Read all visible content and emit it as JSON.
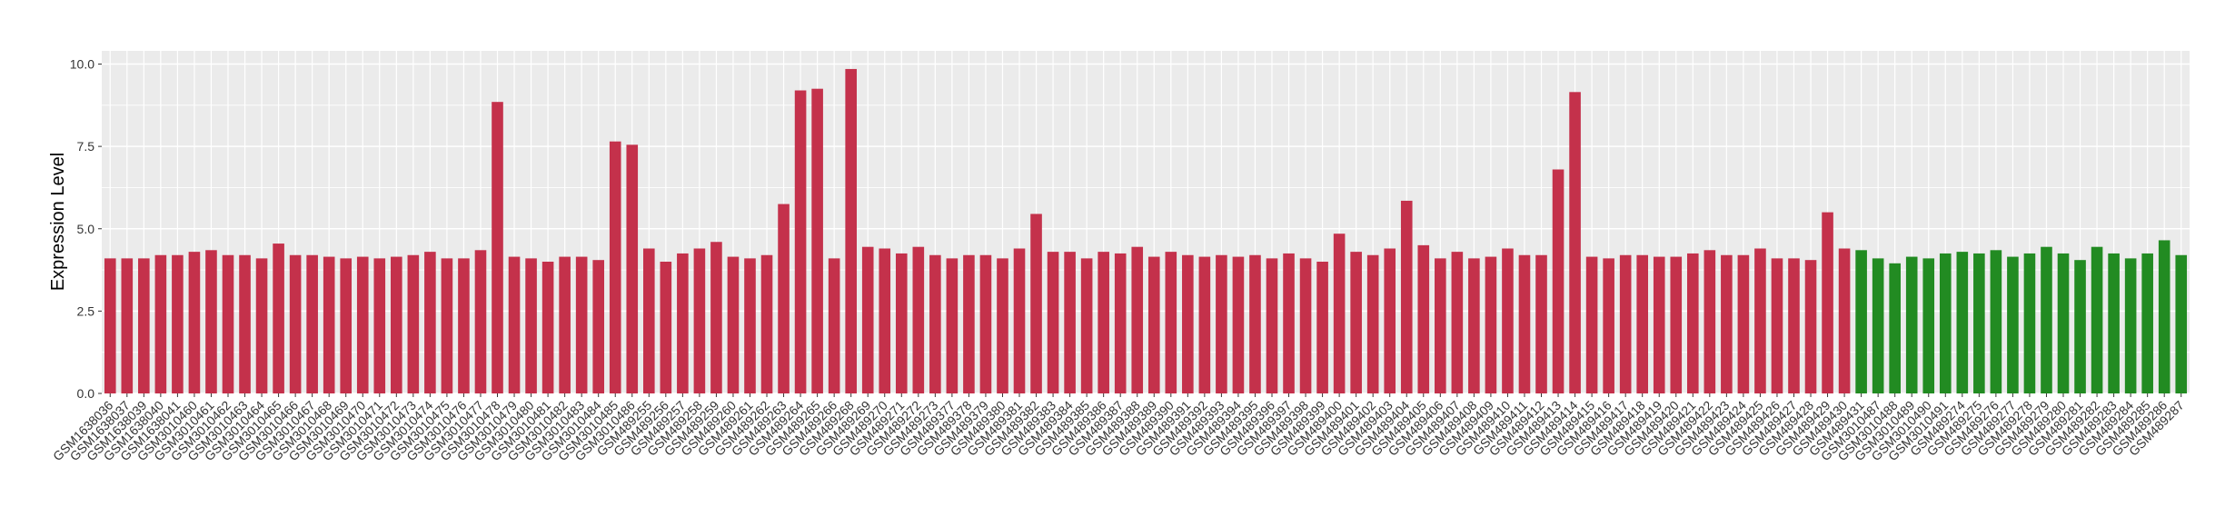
{
  "chart_data": {
    "type": "bar",
    "title": "",
    "xlabel": "",
    "ylabel": "Expression Level",
    "ylim": [
      0,
      10.4
    ],
    "yticks": [
      "0.0",
      "2.5",
      "5.0",
      "7.5",
      "10.0"
    ],
    "grid": true,
    "legend": "none",
    "colors": {
      "group_a": "#c4314b",
      "group_b": "#228b22",
      "panel": "#ebebeb",
      "grid": "#ffffff"
    },
    "categories": [
      "GSM1638036",
      "GSM1638037",
      "GSM1638039",
      "GSM1638040",
      "GSM1638041",
      "GSM3010460",
      "GSM3010461",
      "GSM3010462",
      "GSM3010463",
      "GSM3010464",
      "GSM3010465",
      "GSM3010466",
      "GSM3010467",
      "GSM3010468",
      "GSM3010469",
      "GSM3010470",
      "GSM3010471",
      "GSM3010472",
      "GSM3010473",
      "GSM3010474",
      "GSM3010475",
      "GSM3010476",
      "GSM3010477",
      "GSM3010478",
      "GSM3010479",
      "GSM3010480",
      "GSM3010481",
      "GSM3010482",
      "GSM3010483",
      "GSM3010484",
      "GSM3010485",
      "GSM3010486",
      "GSM489255",
      "GSM489256",
      "GSM489257",
      "GSM489258",
      "GSM489259",
      "GSM489260",
      "GSM489261",
      "GSM489262",
      "GSM489263",
      "GSM489264",
      "GSM489265",
      "GSM489266",
      "GSM489268",
      "GSM489269",
      "GSM489270",
      "GSM489271",
      "GSM489272",
      "GSM489273",
      "GSM489377",
      "GSM489378",
      "GSM489379",
      "GSM489380",
      "GSM489381",
      "GSM489382",
      "GSM489383",
      "GSM489384",
      "GSM489385",
      "GSM489386",
      "GSM489387",
      "GSM489388",
      "GSM489389",
      "GSM489390",
      "GSM489391",
      "GSM489392",
      "GSM489393",
      "GSM489394",
      "GSM489395",
      "GSM489396",
      "GSM489397",
      "GSM489398",
      "GSM489399",
      "GSM489400",
      "GSM489401",
      "GSM489402",
      "GSM489403",
      "GSM489404",
      "GSM489405",
      "GSM489406",
      "GSM489407",
      "GSM489408",
      "GSM489409",
      "GSM489410",
      "GSM489411",
      "GSM489412",
      "GSM489413",
      "GSM489414",
      "GSM489415",
      "GSM489416",
      "GSM489417",
      "GSM489418",
      "GSM489419",
      "GSM489420",
      "GSM489421",
      "GSM489422",
      "GSM489423",
      "GSM489424",
      "GSM489425",
      "GSM489426",
      "GSM489427",
      "GSM489428",
      "GSM489429",
      "GSM489430",
      "GSM489431",
      "GSM3010487",
      "GSM3010488",
      "GSM3010489",
      "GSM3010490",
      "GSM3010491",
      "GSM489274",
      "GSM489275",
      "GSM489276",
      "GSM489277",
      "GSM489278",
      "GSM489279",
      "GSM489280",
      "GSM489281",
      "GSM489282",
      "GSM489283",
      "GSM489284",
      "GSM489285",
      "GSM489286",
      "GSM489287"
    ],
    "values": [
      4.1,
      4.1,
      4.1,
      4.2,
      4.2,
      4.3,
      4.35,
      4.2,
      4.2,
      4.1,
      4.55,
      4.2,
      4.2,
      4.15,
      4.1,
      4.15,
      4.1,
      4.15,
      4.2,
      4.3,
      4.1,
      4.1,
      4.35,
      8.85,
      4.15,
      4.1,
      4.0,
      4.15,
      4.15,
      4.05,
      7.65,
      7.55,
      4.4,
      4.0,
      4.25,
      4.4,
      4.6,
      4.15,
      4.1,
      4.2,
      5.75,
      9.2,
      9.25,
      4.1,
      9.85,
      4.45,
      4.4,
      4.25,
      4.45,
      4.2,
      4.1,
      4.2,
      4.2,
      4.1,
      4.4,
      5.45,
      4.3,
      4.3,
      4.1,
      4.3,
      4.25,
      4.45,
      4.15,
      4.3,
      4.2,
      4.15,
      4.2,
      4.15,
      4.2,
      4.1,
      4.25,
      4.1,
      4.0,
      4.85,
      4.3,
      4.2,
      4.4,
      5.85,
      4.5,
      4.1,
      4.3,
      4.1,
      4.15,
      4.4,
      4.2,
      4.2,
      6.8,
      9.15,
      4.15,
      4.1,
      4.2,
      4.2,
      4.15,
      4.15,
      4.25,
      4.35,
      4.2,
      4.2,
      4.4,
      4.1,
      4.1,
      4.05,
      5.5,
      4.4,
      4.35,
      4.1,
      3.95,
      4.15,
      4.1,
      4.25,
      4.3,
      4.25,
      4.35,
      4.15,
      4.25,
      4.45,
      4.25,
      4.05,
      4.45,
      4.25,
      4.1,
      4.25,
      4.65,
      4.2
    ],
    "group_split_index": 104
  }
}
